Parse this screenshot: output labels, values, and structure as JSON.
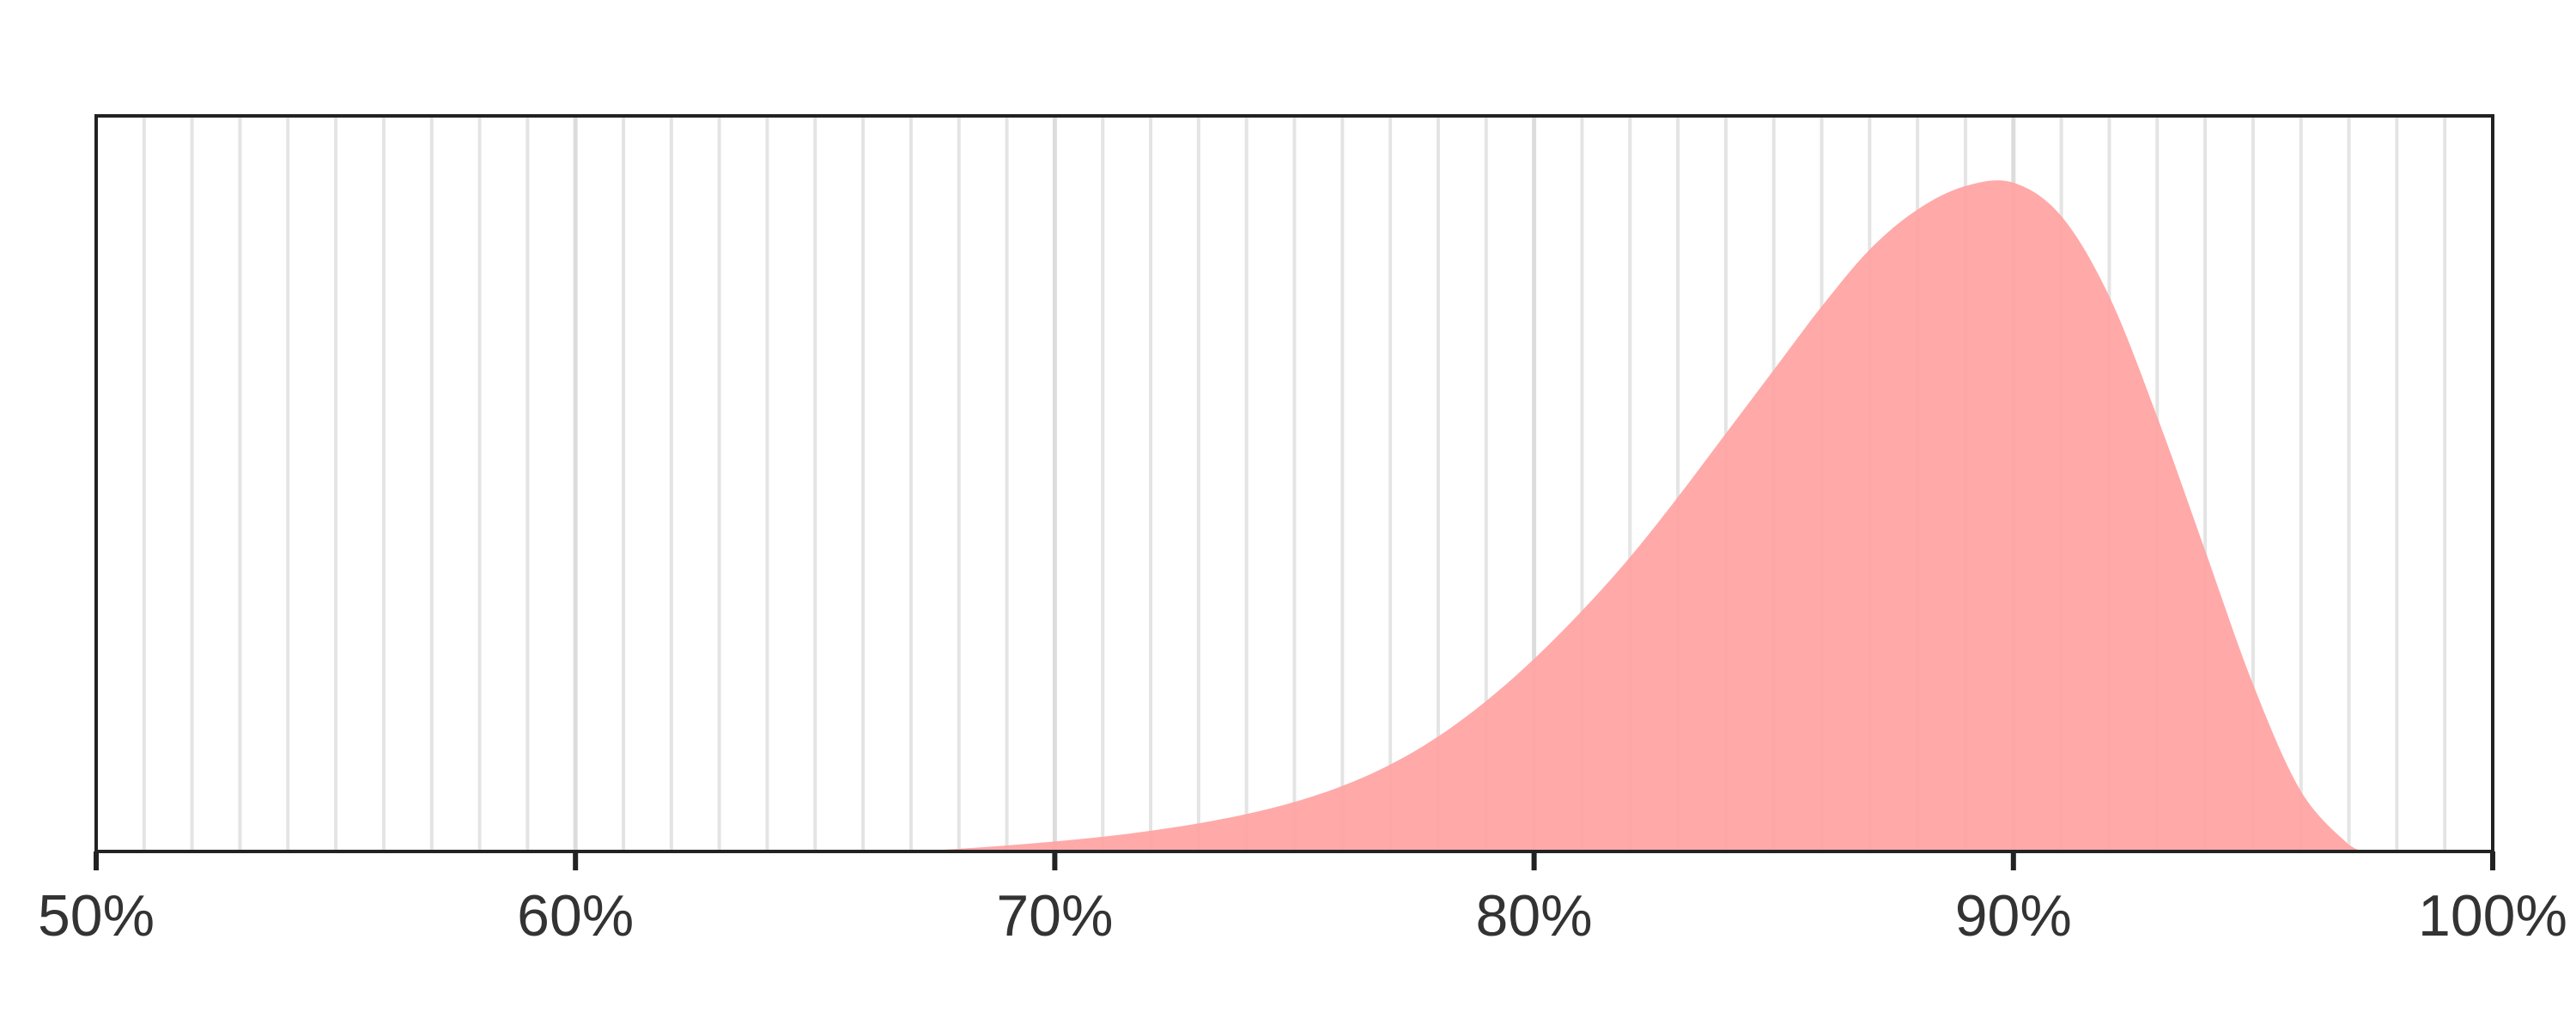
{
  "chart_data": {
    "type": "area",
    "title": "",
    "xlabel": "",
    "ylabel": "",
    "xlim": [
      50,
      100
    ],
    "ylim": [
      0,
      1.1
    ],
    "x_ticks": [
      50,
      60,
      70,
      80,
      90,
      100
    ],
    "x_tick_labels": [
      "50%",
      "60%",
      "70%",
      "80%",
      "90%",
      "100%"
    ],
    "minor_gridline_step": 1,
    "grid": "vertical",
    "y_axis_visible": false,
    "fill_color": "#ffa3a3",
    "series": [
      {
        "x": [
          65,
          66,
          67,
          68,
          69,
          70,
          71,
          72,
          73,
          74,
          75,
          76,
          77,
          78,
          79,
          80,
          81,
          82,
          83,
          84,
          85,
          86,
          87,
          88,
          89,
          90,
          91,
          92,
          93,
          94,
          95,
          96,
          97,
          97.3
        ],
        "values": [
          0.0,
          0.0,
          0.0,
          0.004,
          0.009,
          0.015,
          0.022,
          0.031,
          0.042,
          0.056,
          0.074,
          0.098,
          0.13,
          0.172,
          0.225,
          0.288,
          0.36,
          0.44,
          0.53,
          0.625,
          0.72,
          0.815,
          0.9,
          0.96,
          0.995,
          1.0,
          0.95,
          0.83,
          0.65,
          0.45,
          0.25,
          0.09,
          0.01,
          0.0
        ]
      }
    ]
  }
}
